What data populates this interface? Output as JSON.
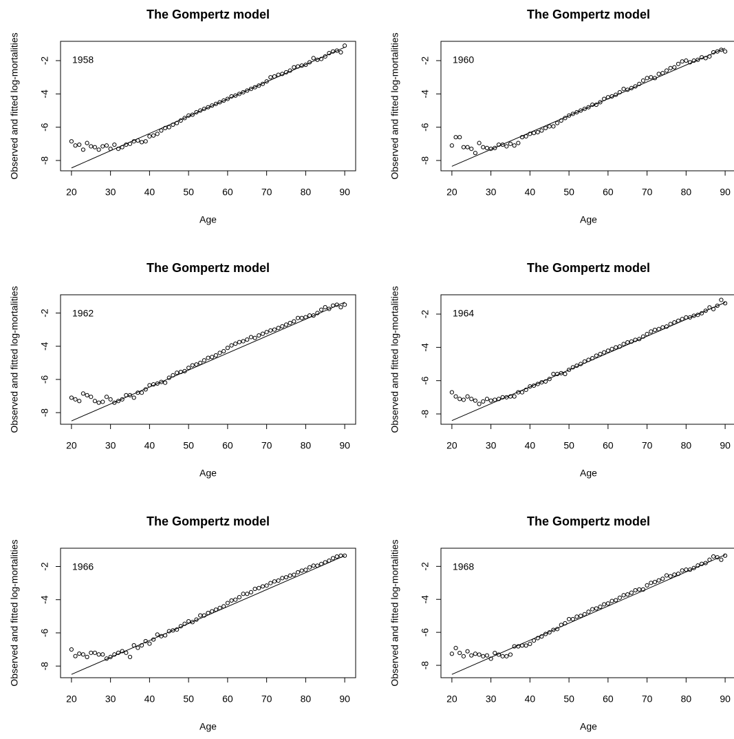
{
  "chart_data": [
    {
      "type": "scatter",
      "title": "The Gompertz model",
      "annotation": "1958",
      "x_label": "Age",
      "y_label": "Observed and fitted log-mortalities",
      "x": [
        20,
        21,
        22,
        23,
        24,
        25,
        26,
        27,
        28,
        29,
        30,
        31,
        32,
        33,
        34,
        35,
        36,
        37,
        38,
        39,
        40,
        41,
        42,
        43,
        44,
        45,
        46,
        47,
        48,
        49,
        50,
        51,
        52,
        53,
        54,
        55,
        56,
        57,
        58,
        59,
        60,
        61,
        62,
        63,
        64,
        65,
        66,
        67,
        68,
        69,
        70,
        71,
        72,
        73,
        74,
        75,
        76,
        77,
        78,
        79,
        80,
        81,
        82,
        83,
        84,
        85,
        86,
        87,
        88,
        89,
        90
      ],
      "series": [
        {
          "color": "#000000",
          "values": [
            -6.85,
            -7.1,
            -7.05,
            -7.35,
            -6.95,
            -7.15,
            -7.2,
            -7.35,
            -7.15,
            -7.1,
            -7.3,
            -7.05,
            -7.3,
            -7.2,
            -7.05,
            -7.0,
            -6.85,
            -6.8,
            -6.9,
            -6.85,
            -6.55,
            -6.5,
            -6.4,
            -6.2,
            -6.05,
            -6.0,
            -5.85,
            -5.75,
            -5.6,
            -5.45,
            -5.3,
            -5.25,
            -5.1,
            -5.0,
            -4.9,
            -4.8,
            -4.7,
            -4.6,
            -4.5,
            -4.4,
            -4.3,
            -4.15,
            -4.1,
            -4.0,
            -3.9,
            -3.8,
            -3.7,
            -3.6,
            -3.5,
            -3.4,
            -3.25,
            -3.0,
            -2.95,
            -2.85,
            -2.8,
            -2.7,
            -2.6,
            -2.4,
            -2.35,
            -2.3,
            -2.25,
            -2.1,
            -1.85,
            -1.95,
            -1.9,
            -1.75,
            -1.55,
            -1.45,
            -1.4,
            -1.5,
            -1.1
          ]
        }
      ],
      "fit": {
        "x": [
          20,
          90
        ],
        "values": [
          -8.45,
          -1.2
        ]
      },
      "xlim": [
        17.2,
        92.8
      ],
      "ylim": [
        -8.62,
        -0.84
      ],
      "xticks": [
        20,
        30,
        40,
        50,
        60,
        70,
        80,
        90
      ],
      "yticks": [
        -8,
        -6,
        -4,
        -2
      ]
    },
    {
      "type": "scatter",
      "title": "The Gompertz model",
      "annotation": "1960",
      "x_label": "Age",
      "y_label": "Observed and fitted log-mortalities",
      "x": [
        20,
        21,
        22,
        23,
        24,
        25,
        26,
        27,
        28,
        29,
        30,
        31,
        32,
        33,
        34,
        35,
        36,
        37,
        38,
        39,
        40,
        41,
        42,
        43,
        44,
        45,
        46,
        47,
        48,
        49,
        50,
        51,
        52,
        53,
        54,
        55,
        56,
        57,
        58,
        59,
        60,
        61,
        62,
        63,
        64,
        65,
        66,
        67,
        68,
        69,
        70,
        71,
        72,
        73,
        74,
        75,
        76,
        77,
        78,
        79,
        80,
        81,
        82,
        83,
        84,
        85,
        86,
        87,
        88,
        89,
        90
      ],
      "series": [
        {
          "color": "#000000",
          "values": [
            -7.1,
            -6.6,
            -6.6,
            -7.2,
            -7.2,
            -7.3,
            -7.55,
            -6.95,
            -7.2,
            -7.25,
            -7.3,
            -7.25,
            -7.05,
            -7.05,
            -7.15,
            -7.0,
            -7.1,
            -6.95,
            -6.6,
            -6.55,
            -6.4,
            -6.35,
            -6.3,
            -6.2,
            -6.05,
            -5.95,
            -5.95,
            -5.75,
            -5.6,
            -5.45,
            -5.3,
            -5.2,
            -5.1,
            -5.0,
            -4.9,
            -4.8,
            -4.65,
            -4.65,
            -4.5,
            -4.3,
            -4.2,
            -4.15,
            -4.05,
            -3.9,
            -3.7,
            -3.75,
            -3.65,
            -3.55,
            -3.4,
            -3.2,
            -3.05,
            -3.0,
            -3.05,
            -2.8,
            -2.75,
            -2.6,
            -2.45,
            -2.4,
            -2.2,
            -2.05,
            -2.0,
            -2.1,
            -2.0,
            -1.95,
            -1.8,
            -1.85,
            -1.75,
            -1.5,
            -1.45,
            -1.35,
            -1.45
          ]
        }
      ],
      "fit": {
        "x": [
          20,
          90
        ],
        "values": [
          -8.35,
          -1.25
        ]
      },
      "xlim": [
        17.2,
        92.8
      ],
      "ylim": [
        -8.62,
        -0.84
      ],
      "xticks": [
        20,
        30,
        40,
        50,
        60,
        70,
        80,
        90
      ],
      "yticks": [
        -8,
        -6,
        -4,
        -2
      ]
    },
    {
      "type": "scatter",
      "title": "The Gompertz model",
      "annotation": "1962",
      "x_label": "Age",
      "y_label": "Observed and fitted log-mortalities",
      "x": [
        20,
        21,
        22,
        23,
        24,
        25,
        26,
        27,
        28,
        29,
        30,
        31,
        32,
        33,
        34,
        35,
        36,
        37,
        38,
        39,
        40,
        41,
        42,
        43,
        44,
        45,
        46,
        47,
        48,
        49,
        50,
        51,
        52,
        53,
        54,
        55,
        56,
        57,
        58,
        59,
        60,
        61,
        62,
        63,
        64,
        65,
        66,
        67,
        68,
        69,
        70,
        71,
        72,
        73,
        74,
        75,
        76,
        77,
        78,
        79,
        80,
        81,
        82,
        83,
        84,
        85,
        86,
        87,
        88,
        89,
        90
      ],
      "series": [
        {
          "color": "#000000",
          "values": [
            -7.1,
            -7.2,
            -7.3,
            -6.85,
            -6.95,
            -7.05,
            -7.3,
            -7.4,
            -7.35,
            -7.05,
            -7.2,
            -7.4,
            -7.3,
            -7.2,
            -6.95,
            -6.95,
            -7.1,
            -6.8,
            -6.8,
            -6.6,
            -6.35,
            -6.3,
            -6.25,
            -6.15,
            -6.2,
            -5.9,
            -5.75,
            -5.6,
            -5.55,
            -5.5,
            -5.3,
            -5.15,
            -5.1,
            -5.0,
            -4.85,
            -4.7,
            -4.65,
            -4.55,
            -4.4,
            -4.3,
            -4.1,
            -3.95,
            -3.85,
            -3.75,
            -3.7,
            -3.6,
            -3.45,
            -3.5,
            -3.35,
            -3.25,
            -3.15,
            -3.05,
            -3.0,
            -2.9,
            -2.8,
            -2.7,
            -2.6,
            -2.5,
            -2.3,
            -2.3,
            -2.25,
            -2.15,
            -2.15,
            -2.0,
            -1.8,
            -1.65,
            -1.75,
            -1.55,
            -1.5,
            -1.65,
            -1.5
          ]
        }
      ],
      "fit": {
        "x": [
          20,
          90
        ],
        "values": [
          -8.5,
          -1.35
        ]
      },
      "xlim": [
        17.2,
        92.8
      ],
      "ylim": [
        -8.7,
        -0.9
      ],
      "xticks": [
        20,
        30,
        40,
        50,
        60,
        70,
        80,
        90
      ],
      "yticks": [
        -8,
        -6,
        -4,
        -2
      ]
    },
    {
      "type": "scatter",
      "title": "The Gompertz model",
      "annotation": "1964",
      "x_label": "Age",
      "y_label": "Observed and fitted log-mortalities",
      "x": [
        20,
        21,
        22,
        23,
        24,
        25,
        26,
        27,
        28,
        29,
        30,
        31,
        32,
        33,
        34,
        35,
        36,
        37,
        38,
        39,
        40,
        41,
        42,
        43,
        44,
        45,
        46,
        47,
        48,
        49,
        50,
        51,
        52,
        53,
        54,
        55,
        56,
        57,
        58,
        59,
        60,
        61,
        62,
        63,
        64,
        65,
        66,
        67,
        68,
        69,
        70,
        71,
        72,
        73,
        74,
        75,
        76,
        77,
        78,
        79,
        80,
        81,
        82,
        83,
        84,
        85,
        86,
        87,
        88,
        89,
        90
      ],
      "series": [
        {
          "color": "#000000",
          "values": [
            -6.7,
            -6.95,
            -7.1,
            -7.15,
            -6.95,
            -7.1,
            -7.2,
            -7.4,
            -7.25,
            -7.1,
            -7.2,
            -7.15,
            -7.1,
            -7.0,
            -7.0,
            -6.95,
            -6.95,
            -6.7,
            -6.7,
            -6.55,
            -6.35,
            -6.3,
            -6.2,
            -6.1,
            -6.05,
            -5.9,
            -5.6,
            -5.6,
            -5.55,
            -5.6,
            -5.35,
            -5.2,
            -5.1,
            -5.0,
            -4.85,
            -4.75,
            -4.65,
            -4.5,
            -4.4,
            -4.3,
            -4.2,
            -4.1,
            -4.0,
            -3.95,
            -3.8,
            -3.7,
            -3.65,
            -3.55,
            -3.5,
            -3.35,
            -3.2,
            -3.05,
            -2.95,
            -2.9,
            -2.8,
            -2.75,
            -2.6,
            -2.5,
            -2.4,
            -2.3,
            -2.2,
            -2.2,
            -2.1,
            -2.05,
            -1.95,
            -1.8,
            -1.6,
            -1.7,
            -1.5,
            -1.15,
            -1.35
          ]
        }
      ],
      "fit": {
        "x": [
          20,
          90
        ],
        "values": [
          -8.4,
          -1.3
        ]
      },
      "xlim": [
        17.2,
        92.8
      ],
      "ylim": [
        -8.62,
        -0.84
      ],
      "xticks": [
        20,
        30,
        40,
        50,
        60,
        70,
        80,
        90
      ],
      "yticks": [
        -8,
        -6,
        -4,
        -2
      ]
    },
    {
      "type": "scatter",
      "title": "The Gompertz model",
      "annotation": "1966",
      "x_label": "Age",
      "y_label": "Observed and fitted log-mortalities",
      "x": [
        20,
        21,
        22,
        23,
        24,
        25,
        26,
        27,
        28,
        29,
        30,
        31,
        32,
        33,
        34,
        35,
        36,
        37,
        38,
        39,
        40,
        41,
        42,
        43,
        44,
        45,
        46,
        47,
        48,
        49,
        50,
        51,
        52,
        53,
        54,
        55,
        56,
        57,
        58,
        59,
        60,
        61,
        62,
        63,
        64,
        65,
        66,
        67,
        68,
        69,
        70,
        71,
        72,
        73,
        74,
        75,
        76,
        77,
        78,
        79,
        80,
        81,
        82,
        83,
        84,
        85,
        86,
        87,
        88,
        89,
        90
      ],
      "series": [
        {
          "color": "#000000",
          "values": [
            -7.0,
            -7.4,
            -7.25,
            -7.3,
            -7.45,
            -7.2,
            -7.2,
            -7.3,
            -7.3,
            -7.55,
            -7.45,
            -7.3,
            -7.2,
            -7.1,
            -7.2,
            -7.45,
            -6.75,
            -6.9,
            -6.75,
            -6.5,
            -6.65,
            -6.4,
            -6.1,
            -6.2,
            -6.15,
            -5.9,
            -5.85,
            -5.8,
            -5.6,
            -5.45,
            -5.3,
            -5.35,
            -5.2,
            -4.95,
            -4.95,
            -4.8,
            -4.7,
            -4.6,
            -4.5,
            -4.4,
            -4.2,
            -4.05,
            -4.0,
            -3.85,
            -3.65,
            -3.65,
            -3.55,
            -3.35,
            -3.3,
            -3.2,
            -3.15,
            -3.0,
            -2.9,
            -2.85,
            -2.7,
            -2.65,
            -2.55,
            -2.5,
            -2.35,
            -2.25,
            -2.2,
            -2.05,
            -1.95,
            -1.95,
            -1.85,
            -1.75,
            -1.65,
            -1.5,
            -1.4,
            -1.35,
            -1.35
          ]
        }
      ],
      "fit": {
        "x": [
          20,
          90
        ],
        "values": [
          -8.5,
          -1.35
        ]
      },
      "xlim": [
        17.2,
        92.8
      ],
      "ylim": [
        -8.7,
        -0.9
      ],
      "xticks": [
        20,
        30,
        40,
        50,
        60,
        70,
        80,
        90
      ],
      "yticks": [
        -8,
        -6,
        -4,
        -2
      ]
    },
    {
      "type": "scatter",
      "title": "The Gompertz model",
      "annotation": "1968",
      "x_label": "Age",
      "y_label": "Observed and fitted log-mortalities",
      "x": [
        20,
        21,
        22,
        23,
        24,
        25,
        26,
        27,
        28,
        29,
        30,
        31,
        32,
        33,
        34,
        35,
        36,
        37,
        38,
        39,
        40,
        41,
        42,
        43,
        44,
        45,
        46,
        47,
        48,
        49,
        50,
        51,
        52,
        53,
        54,
        55,
        56,
        57,
        58,
        59,
        60,
        61,
        62,
        63,
        64,
        65,
        66,
        67,
        68,
        69,
        70,
        71,
        72,
        73,
        74,
        75,
        76,
        77,
        78,
        79,
        80,
        81,
        82,
        83,
        84,
        85,
        86,
        87,
        88,
        89,
        90
      ],
      "series": [
        {
          "color": "#000000",
          "values": [
            -7.3,
            -6.95,
            -7.25,
            -7.45,
            -7.15,
            -7.4,
            -7.3,
            -7.35,
            -7.45,
            -7.4,
            -7.6,
            -7.25,
            -7.35,
            -7.45,
            -7.45,
            -7.35,
            -6.85,
            -6.85,
            -6.8,
            -6.8,
            -6.7,
            -6.5,
            -6.35,
            -6.25,
            -6.1,
            -6.0,
            -5.85,
            -5.8,
            -5.55,
            -5.45,
            -5.2,
            -5.2,
            -5.05,
            -5.0,
            -4.9,
            -4.75,
            -4.6,
            -4.55,
            -4.45,
            -4.3,
            -4.25,
            -4.1,
            -4.05,
            -3.9,
            -3.75,
            -3.7,
            -3.6,
            -3.45,
            -3.4,
            -3.4,
            -3.15,
            -3.0,
            -2.95,
            -2.85,
            -2.75,
            -2.55,
            -2.6,
            -2.5,
            -2.45,
            -2.25,
            -2.2,
            -2.2,
            -2.1,
            -1.95,
            -1.85,
            -1.8,
            -1.6,
            -1.4,
            -1.45,
            -1.6,
            -1.35
          ]
        }
      ],
      "fit": {
        "x": [
          20,
          90
        ],
        "values": [
          -8.55,
          -1.3
        ]
      },
      "xlim": [
        17.2,
        92.8
      ],
      "ylim": [
        -8.75,
        -0.9
      ],
      "xticks": [
        20,
        30,
        40,
        50,
        60,
        70,
        80,
        90
      ],
      "yticks": [
        -8,
        -6,
        -4,
        -2
      ]
    }
  ]
}
